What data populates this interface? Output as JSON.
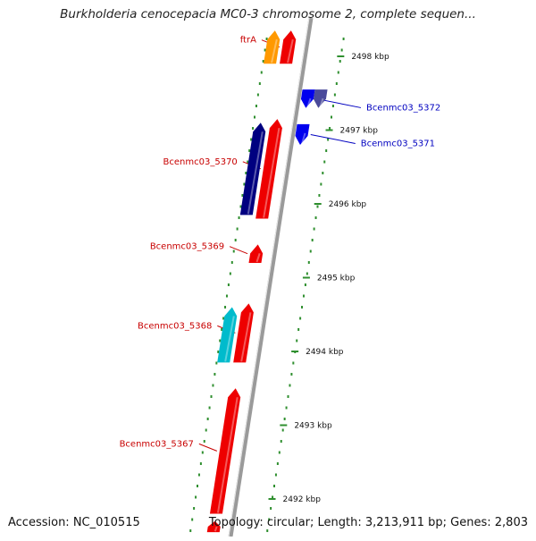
{
  "title": "Burkholderia cenocepacia MC0-3 chromosome 2, complete sequen...",
  "accession_label": "Accession: NC_010515",
  "summary_label": "Topology: circular; Length: 3,213,911 bp; Genes: 2,803",
  "colors": {
    "backbone": "#9a9a9a",
    "tick": "#2f8f2f",
    "label_reverse": "#c80000",
    "label_forward": "#0000c0",
    "red_gene": "#ee0000",
    "orange_gene": "#ff9900",
    "navy_gene": "#000080",
    "cyan_gene": "#00bbcc",
    "blue_gene": "#0000ee",
    "slate_gene": "#4a4a9a"
  },
  "scale": {
    "ticks": [
      {
        "label": "2498 kbp",
        "kbp": 2498
      },
      {
        "label": "2497 kbp",
        "kbp": 2497
      },
      {
        "label": "2496 kbp",
        "kbp": 2496
      },
      {
        "label": "2495 kbp",
        "kbp": 2495
      },
      {
        "label": "2494 kbp",
        "kbp": 2494
      },
      {
        "label": "2493 kbp",
        "kbp": 2493
      },
      {
        "label": "2492 kbp",
        "kbp": 2492
      }
    ]
  },
  "genes": [
    {
      "label": "ftrA",
      "strand": "reverse",
      "ring": "inner",
      "color": "red_gene",
      "start_kbp": 2498.35,
      "end_kbp": 2497.9
    },
    {
      "label": "",
      "strand": "reverse",
      "ring": "outer",
      "color": "orange_gene",
      "start_kbp": 2498.35,
      "end_kbp": 2497.9
    },
    {
      "label": "Bcenmc03_5372",
      "strand": "forward",
      "ring": "inner",
      "color": "blue_gene",
      "start_kbp": 2497.55,
      "end_kbp": 2497.3
    },
    {
      "label": "",
      "strand": "forward",
      "ring": "outer",
      "color": "slate_gene",
      "start_kbp": 2497.55,
      "end_kbp": 2497.3
    },
    {
      "label": "Bcenmc03_5371",
      "strand": "forward",
      "ring": "inner",
      "color": "blue_gene",
      "start_kbp": 2497.08,
      "end_kbp": 2496.8
    },
    {
      "label": "Bcenmc03_5370",
      "strand": "reverse",
      "ring": "inner",
      "color": "red_gene",
      "start_kbp": 2497.15,
      "end_kbp": 2495.8
    },
    {
      "label": "",
      "strand": "reverse",
      "ring": "outer",
      "color": "navy_gene",
      "start_kbp": 2497.1,
      "end_kbp": 2495.85
    },
    {
      "label": "Bcenmc03_5369",
      "strand": "reverse",
      "ring": "inner",
      "color": "red_gene",
      "start_kbp": 2495.45,
      "end_kbp": 2495.2
    },
    {
      "label": "Bcenmc03_5368",
      "strand": "reverse",
      "ring": "inner",
      "color": "red_gene",
      "start_kbp": 2494.65,
      "end_kbp": 2493.85
    },
    {
      "label": "",
      "strand": "reverse",
      "ring": "outer",
      "color": "cyan_gene",
      "start_kbp": 2494.6,
      "end_kbp": 2493.85
    },
    {
      "label": "Bcenmc03_5367",
      "strand": "reverse",
      "ring": "inner",
      "color": "red_gene",
      "start_kbp": 2493.5,
      "end_kbp": 2491.8
    },
    {
      "label": "",
      "strand": "reverse",
      "ring": "inner",
      "color": "red_gene",
      "start_kbp": 2491.7,
      "end_kbp": 2491.55
    }
  ]
}
